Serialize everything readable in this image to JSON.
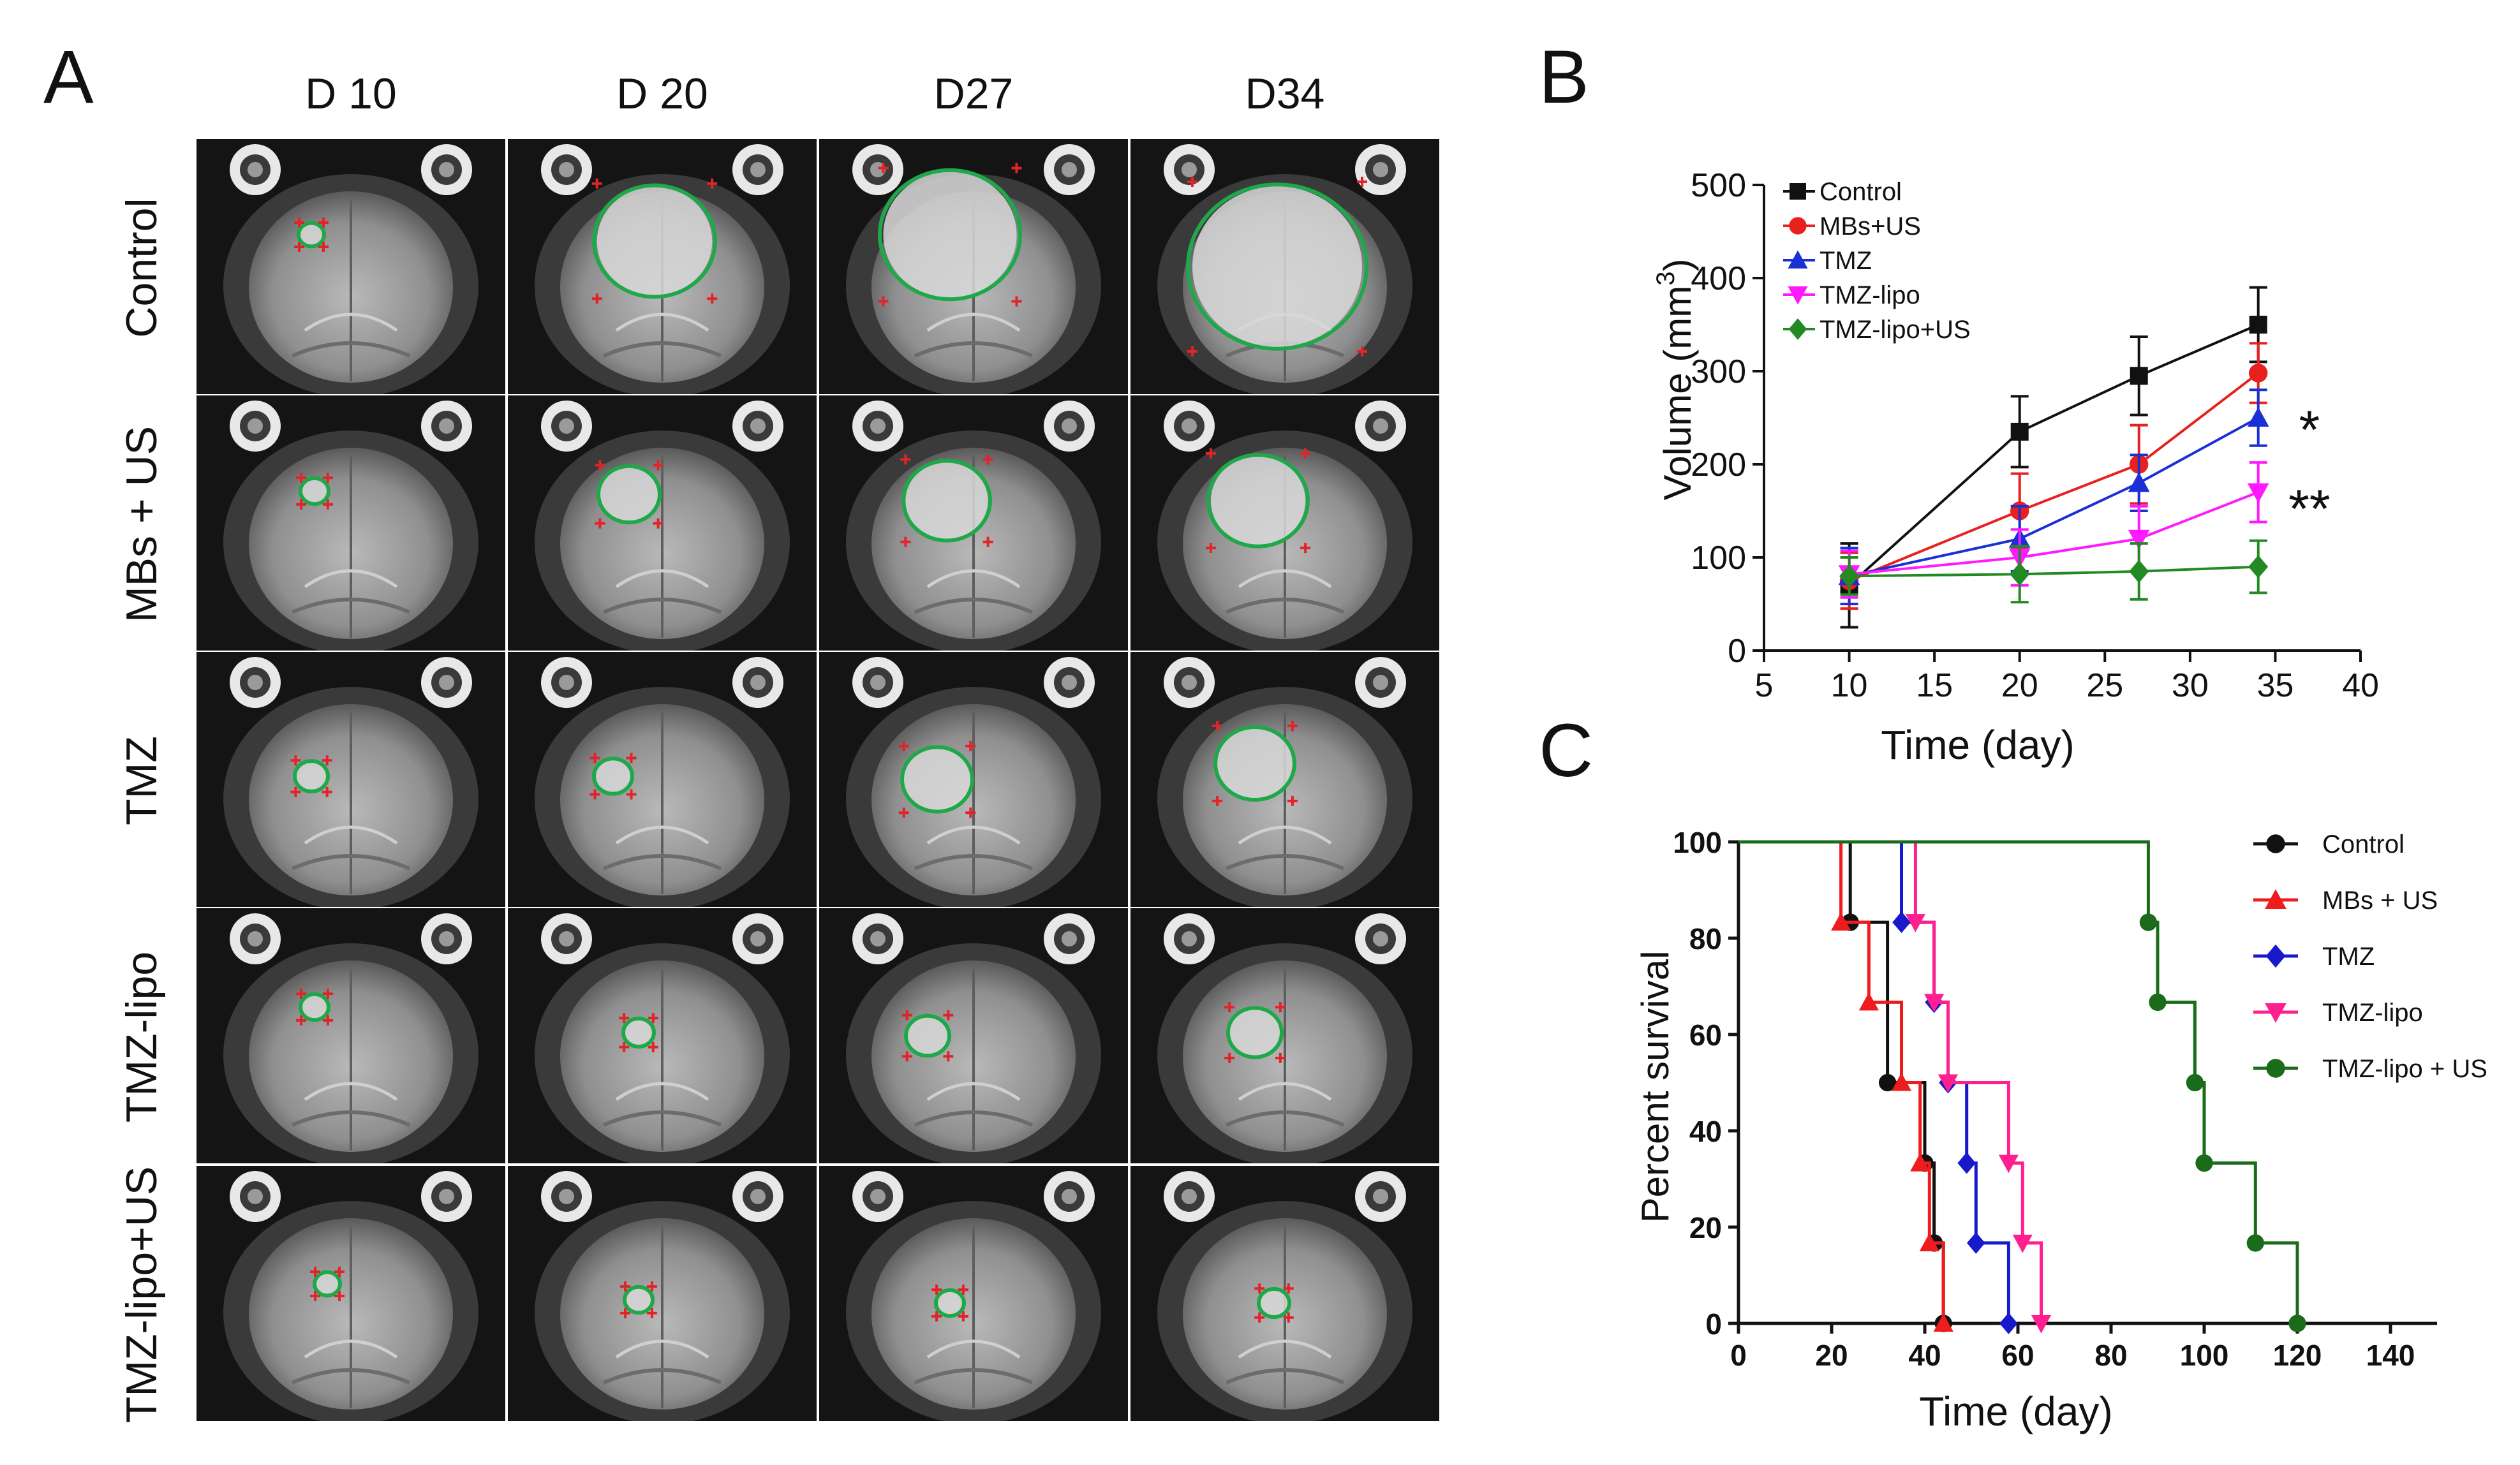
{
  "panels": {
    "a": "A",
    "b": "B",
    "c": "C"
  },
  "mri_grid": {
    "columns": [
      "D 10",
      "D 20",
      "D27",
      "D34"
    ],
    "rows": [
      "Control",
      "MBs + US",
      "TMZ",
      "TMZ-lipo",
      "TMZ-lipo+US"
    ],
    "roi_color": "#1fa84a",
    "marker_color": "#e0242a"
  },
  "chart_data": [
    {
      "type": "line",
      "panel": "B",
      "xlabel": "Time (day)",
      "ylabel": "Volume (mm",
      "ylabel_sup": "3",
      "ylabel_close": ")",
      "xlim": [
        5,
        40
      ],
      "ylim": [
        0,
        500
      ],
      "xticks": [
        5,
        10,
        15,
        20,
        25,
        30,
        35,
        40
      ],
      "yticks": [
        0,
        100,
        200,
        300,
        400,
        500
      ],
      "legend_position": "top-left",
      "series": [
        {
          "name": "Control",
          "color": "#111111",
          "marker": "square",
          "x": [
            10,
            20,
            27,
            34
          ],
          "y": [
            70,
            235,
            295,
            350
          ],
          "err": [
            45,
            38,
            42,
            40
          ]
        },
        {
          "name": "MBs+US",
          "color": "#e8201e",
          "marker": "circle",
          "x": [
            10,
            20,
            27,
            34
          ],
          "y": [
            75,
            150,
            200,
            298
          ],
          "err": [
            30,
            40,
            42,
            32
          ]
        },
        {
          "name": "TMZ",
          "color": "#1a2fd6",
          "marker": "triangle-up",
          "x": [
            10,
            20,
            27,
            34
          ],
          "y": [
            80,
            120,
            180,
            250
          ],
          "err": [
            30,
            35,
            30,
            30
          ]
        },
        {
          "name": "TMZ-lipo",
          "color": "#ff19ff",
          "marker": "triangle-down",
          "x": [
            10,
            20,
            27,
            34
          ],
          "y": [
            82,
            100,
            120,
            170
          ],
          "err": [
            25,
            30,
            35,
            32
          ]
        },
        {
          "name": "TMZ-lipo+US",
          "color": "#238a23",
          "marker": "diamond",
          "x": [
            10,
            20,
            27,
            34
          ],
          "y": [
            80,
            82,
            85,
            90
          ],
          "err": [
            20,
            30,
            30,
            28
          ]
        }
      ],
      "annotations": [
        {
          "text": "*",
          "x": 37,
          "y": 245
        },
        {
          "text": "**",
          "x": 37,
          "y": 160
        }
      ]
    },
    {
      "type": "line",
      "subtype": "kaplan-meier",
      "panel": "C",
      "xlabel": "Time (day)",
      "ylabel": "Percent survival",
      "xlim": [
        0,
        150
      ],
      "ylim": [
        0,
        100
      ],
      "xticks": [
        0,
        20,
        40,
        60,
        80,
        100,
        120,
        140
      ],
      "yticks": [
        0,
        20,
        40,
        60,
        80,
        100
      ],
      "legend_position": "right",
      "series": [
        {
          "name": "Control",
          "color": "#111111",
          "marker": "circle",
          "x": [
            0,
            24,
            32,
            40,
            42,
            44
          ],
          "y": [
            100,
            83.3,
            50,
            33.3,
            16.7,
            0
          ]
        },
        {
          "name": "MBs + US",
          "color": "#ee1c1c",
          "marker": "triangle-up",
          "x": [
            0,
            22,
            28,
            35,
            39,
            41,
            44
          ],
          "y": [
            100,
            83.3,
            66.7,
            50,
            33.3,
            16.7,
            0
          ]
        },
        {
          "name": "TMZ",
          "color": "#1919cc",
          "marker": "diamond",
          "x": [
            0,
            35,
            42,
            45,
            49,
            51,
            58
          ],
          "y": [
            100,
            83.3,
            66.7,
            50,
            33.3,
            16.7,
            0
          ]
        },
        {
          "name": "TMZ-lipo",
          "color": "#ff1f8f",
          "marker": "triangle-down",
          "x": [
            0,
            38,
            42,
            45,
            58,
            61,
            65
          ],
          "y": [
            100,
            83.3,
            66.7,
            50,
            33.3,
            16.7,
            0
          ]
        },
        {
          "name": "TMZ-lipo + US",
          "color": "#1a6b1a",
          "marker": "circle",
          "x": [
            0,
            88,
            90,
            98,
            100,
            111,
            120
          ],
          "y": [
            100,
            83.3,
            66.7,
            50,
            33.3,
            16.7,
            0
          ]
        }
      ]
    }
  ]
}
